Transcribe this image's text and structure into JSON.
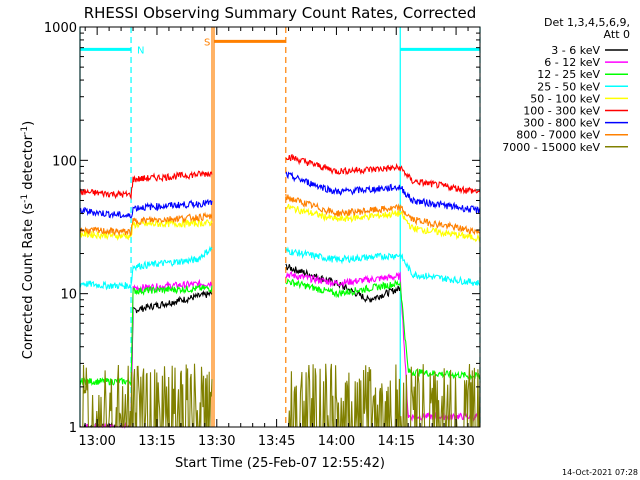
{
  "chart_data": {
    "type": "line",
    "title": "RHESSI Observing Summary Count Rates, Corrected",
    "xlabel": "Start Time (25-Feb-07 12:55:42)",
    "ylabel_main": "Corrected Count Rate (s",
    "ylabel_sup1": "-1",
    "ylabel_mid": " detector",
    "ylabel_sup2": "-1",
    "ylabel_end": ")",
    "yscale": "log",
    "ylim": [
      1,
      1000
    ],
    "xlim_minutes": [
      775.7,
      876.0
    ],
    "yticks": [
      {
        "v": 1,
        "label": "1"
      },
      {
        "v": 10,
        "label": "10"
      },
      {
        "v": 100,
        "label": "100"
      },
      {
        "v": 1000,
        "label": "1000"
      }
    ],
    "xticks": [
      {
        "v": 780,
        "label": "13:00"
      },
      {
        "v": 795,
        "label": "13:15"
      },
      {
        "v": 810,
        "label": "13:30"
      },
      {
        "v": 825,
        "label": "13:45"
      },
      {
        "v": 840,
        "label": "14:00"
      },
      {
        "v": 855,
        "label": "14:15"
      },
      {
        "v": 870,
        "label": "14:30"
      }
    ],
    "legend_header": [
      "Det 1,3,4,5,6,9,",
      "Att 0"
    ],
    "legend_position": "right",
    "timestamp": "14-Oct-2021 07:28",
    "segments": [
      [
        775.7,
        808.8
      ],
      [
        827.3,
        876.0
      ]
    ],
    "series": [
      {
        "name": "3 - 6 keV",
        "color": "#000000",
        "s1": [
          [
            775.7,
            1.0
          ],
          [
            788.5,
            1.0
          ],
          [
            789.0,
            7.5
          ],
          [
            805.0,
            9.5
          ],
          [
            808.8,
            10.0
          ]
        ],
        "s2": [
          [
            827.3,
            16.0
          ],
          [
            840.0,
            12.0
          ],
          [
            848.0,
            9.0
          ],
          [
            856.0,
            11.0
          ]
        ]
      },
      {
        "name": "6 - 12 keV",
        "color": "#ff00ff",
        "s1": [
          [
            775.7,
            1.0
          ],
          [
            788.5,
            1.0
          ],
          [
            789.0,
            11.0
          ],
          [
            808.8,
            12.0
          ]
        ],
        "s2": [
          [
            827.3,
            14.0
          ],
          [
            840.0,
            12.0
          ],
          [
            856.0,
            13.5
          ],
          [
            858.0,
            1.2
          ],
          [
            876.0,
            1.2
          ]
        ]
      },
      {
        "name": "12 - 25 keV",
        "color": "#00ff00",
        "s1": [
          [
            775.7,
            2.2
          ],
          [
            788.5,
            2.2
          ],
          [
            789.0,
            10.5
          ],
          [
            808.8,
            11.0
          ]
        ],
        "s2": [
          [
            827.3,
            12.5
          ],
          [
            840.0,
            10.0
          ],
          [
            856.0,
            12.0
          ],
          [
            858.0,
            2.6
          ],
          [
            876.0,
            2.4
          ]
        ]
      },
      {
        "name": "25 - 50 keV",
        "color": "#00ffff",
        "s1": [
          [
            775.7,
            12.0
          ],
          [
            782.0,
            11.5
          ],
          [
            788.5,
            11.5
          ],
          [
            789.0,
            16.0
          ],
          [
            805.0,
            18.0
          ],
          [
            808.8,
            22.0
          ]
        ],
        "s2": [
          [
            827.3,
            21.0
          ],
          [
            840.0,
            18.0
          ],
          [
            856.0,
            19.5
          ],
          [
            859.0,
            14.0
          ],
          [
            876.0,
            12.0
          ]
        ]
      },
      {
        "name": "50 - 100 keV",
        "color": "#ffff00",
        "s1": [
          [
            775.7,
            28.0
          ],
          [
            788.5,
            27.0
          ],
          [
            789.0,
            33.0
          ],
          [
            808.8,
            34.0
          ]
        ],
        "s2": [
          [
            827.3,
            45.0
          ],
          [
            840.0,
            36.0
          ],
          [
            856.0,
            40.0
          ],
          [
            859.0,
            31.0
          ],
          [
            876.0,
            26.0
          ]
        ]
      },
      {
        "name": "100 - 300 keV",
        "color": "#ff0000",
        "s1": [
          [
            775.7,
            58.0
          ],
          [
            788.5,
            55.0
          ],
          [
            789.0,
            72.0
          ],
          [
            808.8,
            80.0
          ]
        ],
        "s2": [
          [
            827.3,
            108.0
          ],
          [
            840.0,
            83.0
          ],
          [
            856.0,
            88.0
          ],
          [
            859.0,
            70.0
          ],
          [
            876.0,
            58.0
          ]
        ]
      },
      {
        "name": "300 - 800 keV",
        "color": "#0000ff",
        "s1": [
          [
            775.7,
            42.0
          ],
          [
            788.5,
            38.0
          ],
          [
            789.0,
            44.0
          ],
          [
            808.8,
            48.0
          ]
        ],
        "s2": [
          [
            827.3,
            78.0
          ],
          [
            840.0,
            58.0
          ],
          [
            856.0,
            63.0
          ],
          [
            859.0,
            50.0
          ],
          [
            876.0,
            42.0
          ]
        ]
      },
      {
        "name": "800 - 7000 keV",
        "color": "#ff8000",
        "s1": [
          [
            775.7,
            30.0
          ],
          [
            788.5,
            29.0
          ],
          [
            789.0,
            35.0
          ],
          [
            808.8,
            38.0
          ]
        ],
        "s2": [
          [
            827.3,
            53.0
          ],
          [
            840.0,
            40.0
          ],
          [
            856.0,
            44.0
          ],
          [
            859.0,
            36.0
          ],
          [
            876.0,
            29.0
          ]
        ]
      },
      {
        "name": "7000 - 15000 keV",
        "color": "#808000",
        "s1": [
          [
            775.7,
            1.6
          ],
          [
            788.5,
            1.6
          ],
          [
            789.0,
            1.6
          ],
          [
            808.8,
            1.6
          ]
        ],
        "s2": [
          [
            827.3,
            1.5
          ],
          [
            856.0,
            1.5
          ],
          [
            876.0,
            1.6
          ]
        ]
      }
    ],
    "flags": [
      {
        "color": "#00ffff",
        "label": "",
        "x1": 775.7,
        "x2": 788.5,
        "y": 680
      },
      {
        "color": "#00ffff",
        "label": "N",
        "x1": 788.5,
        "x2": 788.5,
        "y": 680
      },
      {
        "color": "#00ffff",
        "label": "",
        "x1": 856.0,
        "x2": 876.0,
        "y": 680
      },
      {
        "color": "#ff8000",
        "label": "S",
        "x1": 809.3,
        "x2": 827.3,
        "y": 780
      }
    ],
    "markers": [
      {
        "color": "#00ffff",
        "x": 775.7,
        "style": "solid"
      },
      {
        "color": "#00ffff",
        "x": 788.5,
        "style": "dashed"
      },
      {
        "color": "#ff8000",
        "x": 808.8,
        "style": "solid"
      },
      {
        "color": "#ff8000",
        "x": 809.3,
        "style": "solid"
      },
      {
        "color": "#ff8000",
        "x": 827.3,
        "style": "dashed"
      },
      {
        "color": "#00ffff",
        "x": 856.0,
        "style": "solid"
      },
      {
        "color": "#00ffff",
        "x": 876.0,
        "style": "dashed"
      }
    ]
  }
}
